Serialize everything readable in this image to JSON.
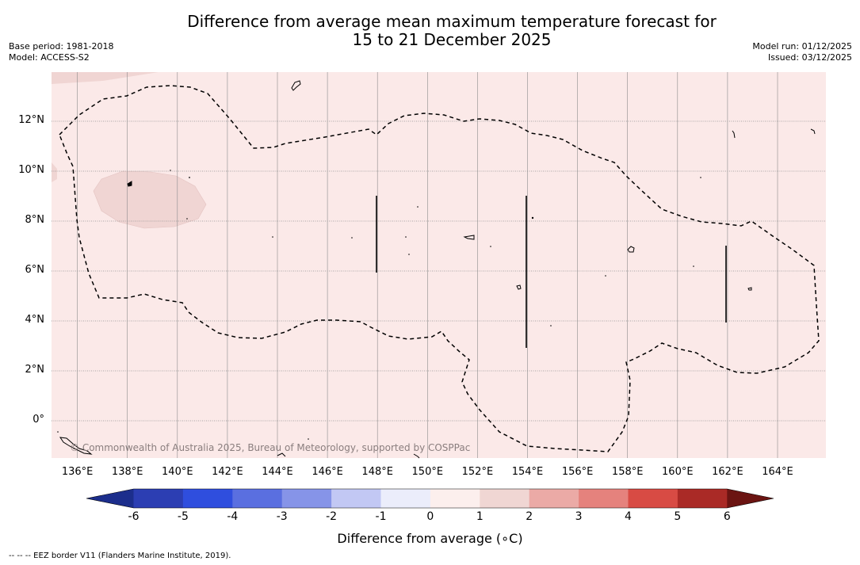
{
  "title": {
    "line1": "Difference from average mean maximum temperature forecast for",
    "line2": "15 to 21 December 2025"
  },
  "meta_left": {
    "base_period": "Base period: 1981-2018",
    "model": "Model: ACCESS-S2"
  },
  "meta_right": {
    "model_run": "Model run: 01/12/2025",
    "issued": "Issued: 03/12/2025"
  },
  "map": {
    "lon_range": [
      135,
      166
    ],
    "lat_range": [
      -1.5,
      14
    ],
    "x_ticks": [
      "136°E",
      "138°E",
      "140°E",
      "142°E",
      "144°E",
      "146°E",
      "148°E",
      "150°E",
      "152°E",
      "154°E",
      "156°E",
      "158°E",
      "160°E",
      "162°E",
      "164°E"
    ],
    "y_ticks": [
      "12°N",
      "10°N",
      "8°N",
      "6°N",
      "4°N",
      "2°N",
      "0°"
    ],
    "background_category_color": "#fbe9e8",
    "warm_patch_color": "#f0d5d3",
    "copyright": "© Commonwealth of Australia 2025, Bureau of Meteorology, supported by COSPPac"
  },
  "colorbar": {
    "title": "Difference from average (∘C)",
    "tick_labels": [
      "-6",
      "-5",
      "-4",
      "-3",
      "-2",
      "-1",
      "0",
      "1",
      "2",
      "3",
      "4",
      "5",
      "6"
    ],
    "colors": [
      "#1c2e8c",
      "#2c3eb3",
      "#2f4ede",
      "#5a6fe0",
      "#8694e8",
      "#c2c8f4",
      "#ebedfb",
      "#fcefed",
      "#f0d6d3",
      "#ebaaa6",
      "#e5827d",
      "#d84b44",
      "#aa2a26",
      "#6b1412"
    ]
  },
  "footnote": "--  --  -- EEZ border V11 (Flanders Marine Institute, 2019)."
}
